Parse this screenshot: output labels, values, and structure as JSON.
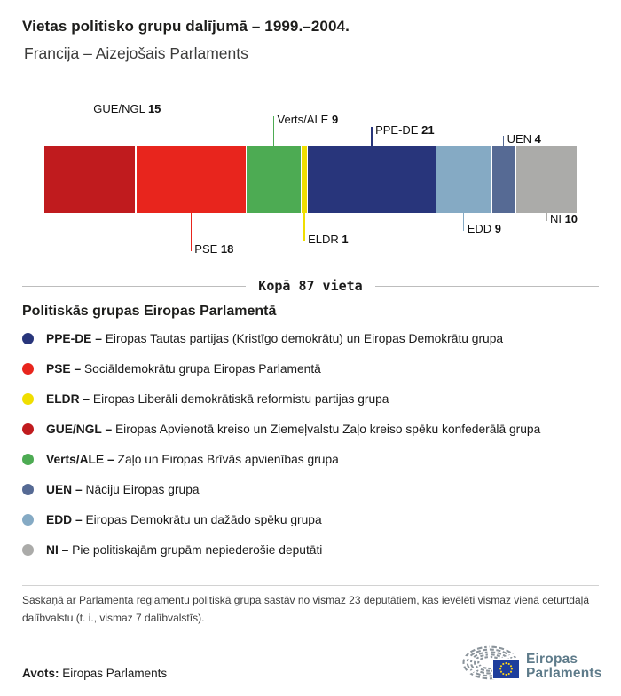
{
  "header": {
    "title": "Vietas politisko grupu dalījumā – 1999.–2004.",
    "subtitle": "Francija – Aizejošais Parlaments"
  },
  "chart_data": {
    "type": "bar",
    "variant": "horizontal-stacked",
    "title": "Vietas politisko grupu dalījumā – 1999.–2004.",
    "subtitle": "Francija – Aizejošais Parlaments",
    "total_seats": 87,
    "categories": [
      "GUE/NGL",
      "PSE",
      "Verts/ALE",
      "ELDR",
      "PPE-DE",
      "EDD",
      "UEN",
      "NI"
    ],
    "values": [
      15,
      18,
      9,
      1,
      21,
      9,
      4,
      10
    ],
    "segments": [
      {
        "group": "GUE/NGL",
        "seats": 15,
        "color": "#c01b1e",
        "callout": "top",
        "level": 0
      },
      {
        "group": "PSE",
        "seats": 18,
        "color": "#e8251d",
        "callout": "bottom",
        "level": 3
      },
      {
        "group": "Verts/ALE",
        "seats": 9,
        "color": "#4dab53",
        "callout": "top",
        "level": 1
      },
      {
        "group": "ELDR",
        "seats": 1,
        "color": "#f0de00",
        "callout": "bottom",
        "level": 2
      },
      {
        "group": "PPE-DE",
        "seats": 21,
        "color": "#28357b",
        "callout": "top",
        "level": 2
      },
      {
        "group": "EDD",
        "seats": 9,
        "color": "#85aac4",
        "callout": "bottom",
        "level": 1
      },
      {
        "group": "UEN",
        "seats": 4,
        "color": "#566a94",
        "callout": "top",
        "level": 3
      },
      {
        "group": "NI",
        "seats": 10,
        "color": "#ababa9",
        "callout": "bottom",
        "level": 0
      }
    ]
  },
  "total": {
    "label": "Kopā 87 vieta"
  },
  "legend": {
    "heading": "Politiskās grupas Eiropas Parlamentā",
    "items": [
      {
        "label": "PPE-DE",
        "separator": "–",
        "desc": "Eiropas Tautas partijas (Kristīgo demokrātu) un Eiropas Demokrātu grupa",
        "color": "#28357b"
      },
      {
        "label": "PSE",
        "separator": "–",
        "desc": "Sociāldemokrātu grupa Eiropas Parlamentā",
        "color": "#e8251d"
      },
      {
        "label": "ELDR",
        "separator": "–",
        "desc": "Eiropas Liberāli demokrātiskā reformistu partijas grupa",
        "color": "#f0de00"
      },
      {
        "label": "GUE/NGL",
        "separator": "–",
        "desc": "Eiropas Apvienotā kreiso un Ziemeļvalstu Zaļo kreiso spēku konfederālā grupa",
        "color": "#c01b1e"
      },
      {
        "label": "Verts/ALE",
        "separator": "–",
        "desc": "Zaļo un Eiropas Brīvās apvienības grupa",
        "color": "#4dab53"
      },
      {
        "label": "UEN",
        "separator": "–",
        "desc": "Nāciju Eiropas grupa",
        "color": "#566a94"
      },
      {
        "label": "EDD",
        "separator": "–",
        "desc": "Eiropas Demokrātu un dažādo spēku grupa",
        "color": "#85aac4"
      },
      {
        "label": "NI",
        "separator": "–",
        "desc": "Pie politiskajām grupām nepiederošie deputāti",
        "color": "#ababa9"
      }
    ]
  },
  "footnote": "Saskaņā ar Parlamenta reglamentu politiskā grupa sastāv no vismaz 23 deputātiem, kas ievēlēti vismaz vienā ceturtdaļā dalībvalstu (t. i., vismaz 7 dalībvalstīs).",
  "source": {
    "label": "Avots:",
    "value": "Eiropas Parlaments"
  },
  "logo": {
    "line1": "Eiropas",
    "line2": "Parlaments",
    "flag_color": "#1e3e9c",
    "star_color": "#ffd617",
    "arc_color": "#8b949b",
    "text_color": "#5e7b8a"
  }
}
